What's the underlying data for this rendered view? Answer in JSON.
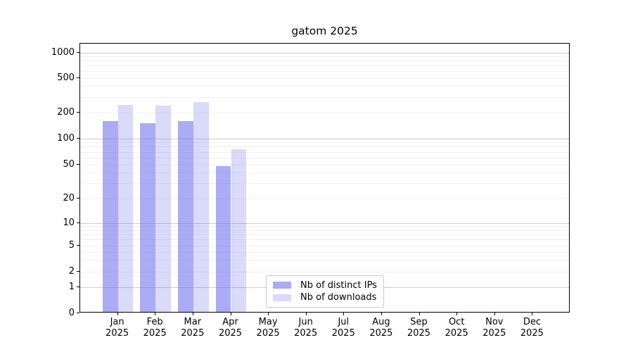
{
  "chart_data": {
    "type": "bar",
    "title": "gatom 2025",
    "months": [
      "Jan",
      "Feb",
      "Mar",
      "Apr",
      "May",
      "Jun",
      "Jul",
      "Aug",
      "Sep",
      "Oct",
      "Nov",
      "Dec"
    ],
    "year": "2025",
    "series": [
      {
        "name": "Nb of distinct IPs",
        "slug": "distinct-ips",
        "color": "rgba(102, 102, 238, 0.55)",
        "values": [
          160,
          150,
          160,
          48,
          0,
          0,
          0,
          0,
          0,
          0,
          0,
          0
        ]
      },
      {
        "name": "Nb of downloads",
        "slug": "downloads",
        "color": "rgba(102, 102, 238, 0.24)",
        "values": [
          245,
          240,
          265,
          75,
          0,
          0,
          0,
          0,
          0,
          0,
          0,
          0
        ]
      }
    ],
    "y_ticks": [
      0,
      1,
      2,
      5,
      10,
      20,
      50,
      100,
      200,
      500,
      1000
    ],
    "y_scale": "symlog",
    "ylim": [
      0,
      1280
    ],
    "xlabel": "",
    "ylabel": "",
    "grid": true,
    "legend_position": "lower center"
  }
}
